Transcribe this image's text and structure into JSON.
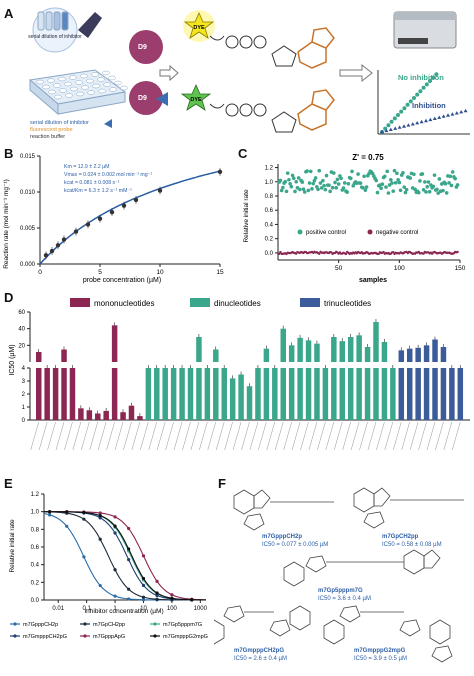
{
  "panels": {
    "A": {
      "letter": "A",
      "tube_label": "serial dilution of inhibitor",
      "enzyme_label_1": "D9",
      "enzyme_label_2": "D9",
      "dye_label_1": "DYE",
      "dye_label_2": "DYE",
      "legend": [
        {
          "text": "serial dilution of inhibitor",
          "color": "#2b5ea7"
        },
        {
          "text": "fluorescent probe",
          "color": "#e0902a"
        },
        {
          "text": "reaction buffer",
          "color": "#333333"
        }
      ],
      "no_inhibition_label": "No inhibition",
      "inhibition_label": "Inhibition",
      "colors": {
        "enzyme": "#9b3d6d",
        "dye": "#f4e51c",
        "teal": "#3aa68b",
        "blue": "#2f4f8f",
        "orange": "#c8732a"
      }
    },
    "B": {
      "letter": "B",
      "chart_data": {
        "type": "line",
        "xlabel": "probe concentration (µM)",
        "ylabel": "Reaction rate (mol min⁻¹ mg⁻¹)",
        "xlim": [
          0,
          15
        ],
        "ylim": [
          0,
          0.015
        ],
        "xticks": [
          0,
          5,
          10,
          15
        ],
        "yticks": [
          "0.000",
          "0.005",
          "0.010",
          "0.015"
        ],
        "points": [
          {
            "x": 0.5,
            "y": 0.0012
          },
          {
            "x": 1,
            "y": 0.0018
          },
          {
            "x": 1.5,
            "y": 0.0026
          },
          {
            "x": 2,
            "y": 0.0034
          },
          {
            "x": 3,
            "y": 0.0045
          },
          {
            "x": 4,
            "y": 0.0055
          },
          {
            "x": 5,
            "y": 0.0063
          },
          {
            "x": 6,
            "y": 0.0072
          },
          {
            "x": 7,
            "y": 0.0081
          },
          {
            "x": 8,
            "y": 0.0089
          },
          {
            "x": 10,
            "y": 0.0102
          },
          {
            "x": 15,
            "y": 0.0128
          }
        ],
        "annotations": [
          "Km = 12.9 ± 2.2 µM",
          "Vmax = 0.024 ± 0.002 mol min⁻¹ mg⁻¹",
          "kcat = 0.081 ± 0.008 s⁻¹",
          "kcat/Km = 6.3 ± 1.2 s⁻¹ mM⁻¹"
        ]
      }
    },
    "C": {
      "letter": "C",
      "chart_data": {
        "type": "scatter",
        "title": "Z' = 0.75",
        "xlabel": "samples",
        "ylabel": "Relative initial rate",
        "xlim": [
          0,
          150
        ],
        "ylim": [
          -0.1,
          1.25
        ],
        "xticks": [
          50,
          100,
          150
        ],
        "yticks": [
          "0.0",
          "0.2",
          "0.4",
          "0.6",
          "0.8",
          "1.0",
          "1.2"
        ],
        "positive_mean": 1.0,
        "negative_mean": 0.0,
        "legend": [
          "positive control",
          "negative control"
        ]
      }
    },
    "D": {
      "letter": "D",
      "chart_data": {
        "type": "bar",
        "ylabel": "IC50 (µM)",
        "legend": [
          {
            "name": "mononucleotides",
            "color": "#8b2752"
          },
          {
            "name": "dinucleotides",
            "color": "#3aa68b"
          },
          {
            "name": "trinucleotides",
            "color": "#3b5b9a"
          }
        ],
        "lower_yticks": [
          "0",
          "1",
          "2",
          "3",
          "4"
        ],
        "upper_yticks": [
          "20",
          "40",
          "60"
        ],
        "groups": [
          "mono",
          "mono",
          "mono",
          "mono",
          "mono",
          "mono",
          "mono",
          "mono",
          "mono",
          "mono",
          "mono",
          "mono",
          "mono",
          "di",
          "di",
          "di",
          "di",
          "di",
          "di",
          "di",
          "di",
          "di",
          "di",
          "di",
          "di",
          "di",
          "di",
          "di",
          "di",
          "di",
          "di",
          "di",
          "di",
          "di",
          "di",
          "di",
          "di",
          "di",
          "di",
          "di",
          "di",
          "di",
          "di",
          "tri",
          "tri",
          "tri",
          "tri",
          "tri",
          "tri",
          "tri",
          "tri"
        ],
        "values": [
          12,
          4,
          4,
          15,
          4,
          0.9,
          0.75,
          0.5,
          0.7,
          44,
          0.6,
          1.1,
          0.3,
          4,
          4,
          4,
          4,
          4,
          4,
          30,
          4,
          15,
          4,
          3.2,
          3.5,
          2.6,
          4,
          16,
          4,
          40,
          20,
          29,
          26,
          22,
          4,
          30,
          25,
          30,
          32,
          18,
          48,
          24,
          4,
          14,
          16,
          17,
          20,
          27,
          18,
          4,
          4
        ]
      }
    },
    "E": {
      "letter": "E",
      "chart_data": {
        "type": "line",
        "xlabel": "Inhibitor concentration (µM)",
        "ylabel": "Relative initial rate",
        "ylim": [
          0,
          1.2
        ],
        "yticks": [
          "0.0",
          "0.2",
          "0.4",
          "0.6",
          "0.8",
          "1.0",
          "1.2"
        ],
        "xticks": [
          "0.01",
          "0.1",
          "1",
          "10",
          "100",
          "1000"
        ],
        "series": [
          {
            "name": "m7GpppCH2p",
            "ic50": 0.077,
            "color": "#2b6ea7"
          },
          {
            "name": "m7GpCH2pp",
            "ic50": 0.58,
            "color": "#1b2b3b"
          },
          {
            "name": "m7Gp5pppm7G",
            "ic50": 3.6,
            "color": "#3aa68b"
          },
          {
            "name": "m7GmpppCH2pG",
            "ic50": 2.6,
            "color": "#1f3d70"
          },
          {
            "name": "m7GpppApG",
            "ic50": 10,
            "color": "#8b2752"
          },
          {
            "name": "m7GmpppG2mpG",
            "ic50": 3.9,
            "color": "#111111"
          }
        ]
      }
    },
    "F": {
      "letter": "F",
      "compounds": [
        {
          "name": "m7GpppCH2p",
          "ic50": "IC50 = 0.077 ± 0.005 µM"
        },
        {
          "name": "m7GpCH2pp",
          "ic50": "IC50 = 0.58 ± 0.08 µM"
        },
        {
          "name": "m7Gp5pppm7G",
          "ic50": "IC50 = 3.6 ± 0.4 µM"
        },
        {
          "name": "m7GmpppCH2pG",
          "ic50": "IC50 = 2.6 ± 0.4 µM"
        },
        {
          "name": "m7GmpppG2mpG",
          "ic50": "IC50 = 3.9 ± 0.5 µM"
        }
      ]
    }
  }
}
